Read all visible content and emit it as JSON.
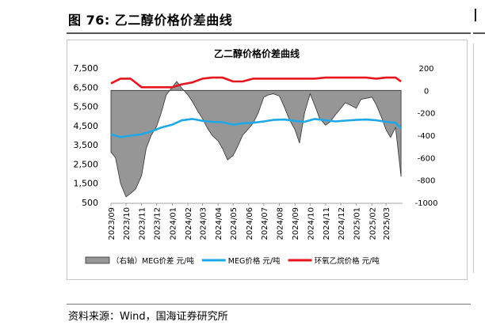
{
  "figure": {
    "title": "图 76:  乙二醇价格价差曲线",
    "source": "资料来源：Wind，国海证券研究所"
  },
  "chart_data": {
    "type": "line",
    "title": "乙二醇价格价差曲线",
    "left_axis": {
      "ylim": [
        500,
        7500
      ],
      "ticks": [
        "500",
        "1,500",
        "2,500",
        "3,500",
        "4,500",
        "5,500",
        "6,500",
        "7,500"
      ]
    },
    "right_axis": {
      "ylim": [
        -1000,
        200
      ],
      "ticks": [
        "200",
        "0",
        "-200",
        "-400",
        "-600",
        "-800",
        "-1000"
      ]
    },
    "x_ticks": [
      "2023/09",
      "2023/10",
      "2023/11",
      "2023/12",
      "2024/01",
      "2024/02",
      "2024/03",
      "2024/04",
      "2024/05",
      "2024/06",
      "2024/07",
      "2024/08",
      "2024/09",
      "2024/10",
      "2024/11",
      "2024/12",
      "2025/01",
      "2025/02",
      "2025/03"
    ],
    "grid": false,
    "legend_position": "bottom",
    "series": [
      {
        "name": "（右轴）MEG价差  元/吨",
        "axis": "right",
        "style": "area",
        "color": "#969696",
        "x": [
          "2023/09/01",
          "2023/09/10",
          "2023/09/20",
          "2023/10/01",
          "2023/10/10",
          "2023/10/20",
          "2023/11/01",
          "2023/11/10",
          "2023/11/20",
          "2023/12/01",
          "2023/12/10",
          "2023/12/20",
          "2024/01/01",
          "2024/01/10",
          "2024/01/20",
          "2024/02/01",
          "2024/02/10",
          "2024/02/20",
          "2024/03/01",
          "2024/03/10",
          "2024/03/20",
          "2024/04/01",
          "2024/04/10",
          "2024/04/20",
          "2024/05/01",
          "2024/05/10",
          "2024/05/20",
          "2024/06/01",
          "2024/06/10",
          "2024/06/20",
          "2024/07/01",
          "2024/07/10",
          "2024/07/20",
          "2024/08/01",
          "2024/08/10",
          "2024/08/20",
          "2024/09/01",
          "2024/09/10",
          "2024/09/20",
          "2024/10/01",
          "2024/10/10",
          "2024/10/20",
          "2024/11/01",
          "2024/11/10",
          "2024/11/20",
          "2024/12/01",
          "2024/12/10",
          "2024/12/20",
          "2025/01/01",
          "2025/01/10",
          "2025/01/20",
          "2025/02/01",
          "2025/02/10",
          "2025/02/20",
          "2025/03/01",
          "2025/03/10",
          "2025/03/20",
          "2025/03/31"
        ],
        "values": [
          -550,
          -600,
          -830,
          -950,
          -920,
          -880,
          -760,
          -520,
          -400,
          -320,
          -200,
          -40,
          30,
          80,
          20,
          -40,
          -100,
          -180,
          -250,
          -330,
          -400,
          -450,
          -520,
          -620,
          -580,
          -500,
          -400,
          -340,
          -290,
          -200,
          -60,
          -40,
          -30,
          -50,
          -140,
          -250,
          -350,
          -470,
          -200,
          -30,
          -130,
          -250,
          -310,
          -280,
          -220,
          -160,
          -110,
          -130,
          -160,
          -80,
          -70,
          -60,
          -130,
          -240,
          -350,
          -420,
          -330,
          -770
        ]
      },
      {
        "name": "MEG价格  元/吨",
        "axis": "left",
        "style": "line",
        "color": "#1ea8e8",
        "x": [
          "2023/09/01",
          "2023/09/20",
          "2023/10/10",
          "2023/11/01",
          "2023/11/20",
          "2023/12/10",
          "2024/01/01",
          "2024/01/20",
          "2024/02/10",
          "2024/03/01",
          "2024/03/20",
          "2024/04/10",
          "2024/05/01",
          "2024/05/20",
          "2024/06/10",
          "2024/07/01",
          "2024/07/20",
          "2024/08/10",
          "2024/09/01",
          "2024/09/20",
          "2024/10/10",
          "2024/11/01",
          "2024/11/20",
          "2024/12/10",
          "2025/01/01",
          "2025/01/20",
          "2025/02/10",
          "2025/03/01",
          "2025/03/20",
          "2025/03/31"
        ],
        "values": [
          4050,
          3900,
          3980,
          4050,
          4200,
          4400,
          4550,
          4780,
          4850,
          4750,
          4700,
          4680,
          4550,
          4620,
          4650,
          4720,
          4800,
          4820,
          4750,
          4700,
          4850,
          4780,
          4720,
          4760,
          4800,
          4820,
          4780,
          4700,
          4650,
          4350
        ]
      },
      {
        "name": "环氧乙烷价格  元/吨",
        "axis": "left",
        "style": "line",
        "color": "#e8141e",
        "x": [
          "2023/09/01",
          "2023/09/20",
          "2023/10/10",
          "2023/11/01",
          "2023/11/20",
          "2023/12/10",
          "2024/01/01",
          "2024/01/20",
          "2024/02/10",
          "2024/03/01",
          "2024/03/20",
          "2024/04/10",
          "2024/05/01",
          "2024/05/20",
          "2024/06/10",
          "2024/07/01",
          "2024/07/20",
          "2024/08/10",
          "2024/09/01",
          "2024/09/20",
          "2024/10/10",
          "2024/11/01",
          "2024/11/20",
          "2024/12/10",
          "2025/01/01",
          "2025/01/20",
          "2025/02/10",
          "2025/03/01",
          "2025/03/20",
          "2025/03/31"
        ],
        "values": [
          6700,
          6950,
          6950,
          6500,
          6500,
          6500,
          6500,
          6650,
          6750,
          6950,
          7000,
          7000,
          6800,
          6800,
          6950,
          6950,
          6950,
          6950,
          6950,
          6950,
          6950,
          7000,
          7000,
          7000,
          7000,
          7000,
          6950,
          7000,
          7000,
          6800
        ]
      }
    ]
  }
}
